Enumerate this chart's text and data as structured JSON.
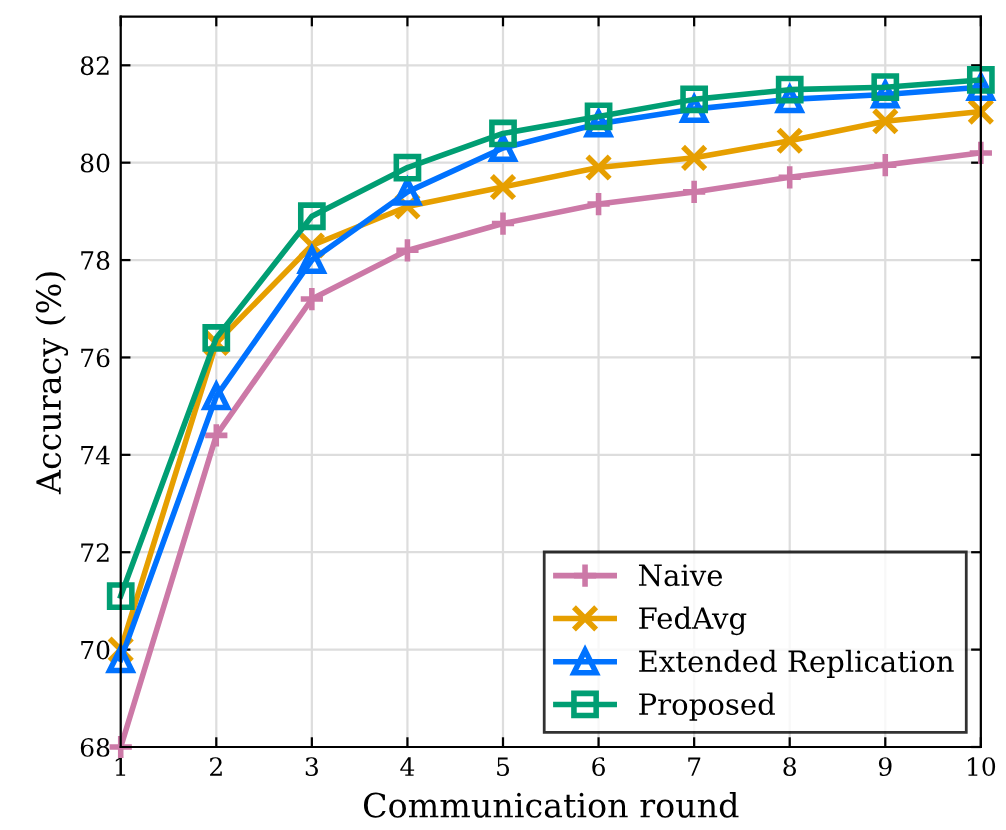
{
  "chart_data": {
    "type": "line",
    "xlabel": "Communication round",
    "ylabel": "Accuracy (%)",
    "x": [
      1,
      2,
      3,
      4,
      5,
      6,
      7,
      8,
      9,
      10
    ],
    "series": [
      {
        "name": "Naive",
        "color": "#cc79a7",
        "marker": "cross",
        "values": [
          68.0,
          74.4,
          77.2,
          78.2,
          78.75,
          79.15,
          79.4,
          79.7,
          79.95,
          80.2
        ]
      },
      {
        "name": "FedAvg",
        "color": "#e69f00",
        "marker": "x",
        "values": [
          70.0,
          76.3,
          78.3,
          79.1,
          79.5,
          79.9,
          80.1,
          80.45,
          80.85,
          81.05
        ]
      },
      {
        "name": "Extended Replication",
        "color": "#0072ff",
        "marker": "triangle",
        "values": [
          69.8,
          75.2,
          78.0,
          79.4,
          80.3,
          80.8,
          81.1,
          81.3,
          81.4,
          81.55
        ]
      },
      {
        "name": "Proposed",
        "color": "#009e73",
        "marker": "square",
        "values": [
          71.1,
          76.4,
          78.9,
          79.9,
          80.6,
          80.95,
          81.3,
          81.5,
          81.55,
          81.7
        ]
      }
    ],
    "xlim": [
      1,
      10
    ],
    "xticks": [
      1,
      2,
      3,
      4,
      5,
      6,
      7,
      8,
      9,
      10
    ],
    "ylim": [
      68,
      83
    ],
    "yticks": [
      68,
      70,
      72,
      74,
      76,
      78,
      80,
      82
    ],
    "grid": true,
    "legend": "bottom right",
    "line_style": "solid"
  }
}
